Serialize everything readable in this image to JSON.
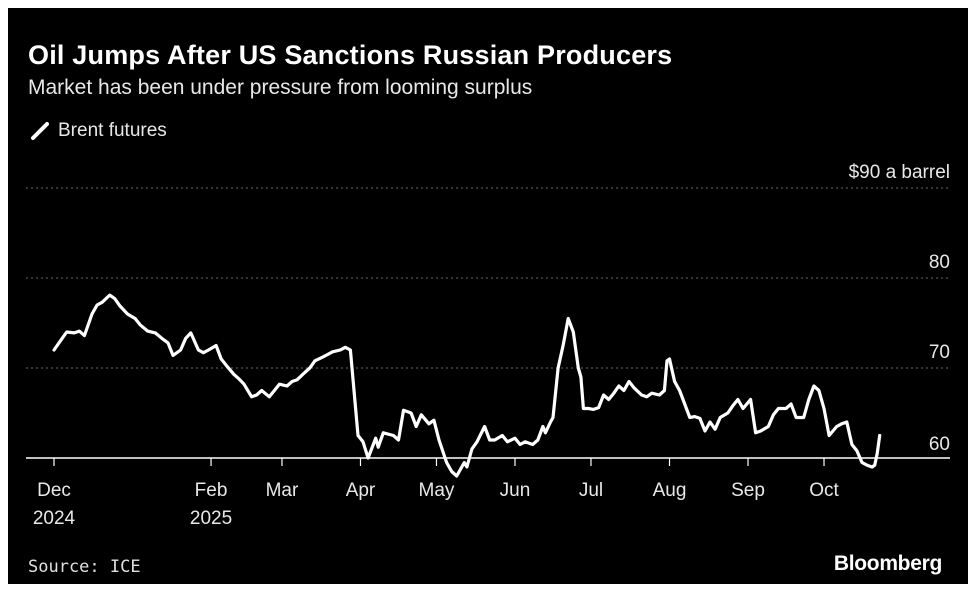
{
  "chart_data": {
    "type": "line",
    "title": "Oil Jumps After US Sanctions Russian Producers",
    "subtitle": "Market has been under pressure from looming surplus",
    "series": [
      {
        "name": "Brent futures",
        "color": "#ffffff",
        "points": [
          [
            "2024-12-01",
            72.0
          ],
          [
            "2024-12-04",
            73.2
          ],
          [
            "2024-12-06",
            74.0
          ],
          [
            "2024-12-09",
            73.9
          ],
          [
            "2024-12-11",
            74.1
          ],
          [
            "2024-12-13",
            73.6
          ],
          [
            "2024-12-16",
            76.0
          ],
          [
            "2024-12-18",
            77.0
          ],
          [
            "2024-12-20",
            77.3
          ],
          [
            "2024-12-23",
            78.1
          ],
          [
            "2024-12-25",
            77.7
          ],
          [
            "2024-12-27",
            76.9
          ],
          [
            "2024-12-30",
            76.0
          ],
          [
            "2025-01-02",
            75.5
          ],
          [
            "2025-01-04",
            74.8
          ],
          [
            "2025-01-07",
            74.1
          ],
          [
            "2025-01-10",
            73.9
          ],
          [
            "2025-01-13",
            73.2
          ],
          [
            "2025-01-15",
            72.8
          ],
          [
            "2025-01-17",
            71.4
          ],
          [
            "2025-01-20",
            72.0
          ],
          [
            "2025-01-22",
            73.3
          ],
          [
            "2025-01-24",
            73.9
          ],
          [
            "2025-01-27",
            72.0
          ],
          [
            "2025-01-29",
            71.7
          ],
          [
            "2025-01-31",
            72.0
          ],
          [
            "2025-02-03",
            72.5
          ],
          [
            "2025-02-05",
            71.0
          ],
          [
            "2025-02-07",
            70.3
          ],
          [
            "2025-02-10",
            69.3
          ],
          [
            "2025-02-12",
            68.8
          ],
          [
            "2025-02-14",
            68.2
          ],
          [
            "2025-02-17",
            66.8
          ],
          [
            "2025-02-19",
            67.0
          ],
          [
            "2025-02-21",
            67.5
          ],
          [
            "2025-02-24",
            66.8
          ],
          [
            "2025-02-26",
            67.5
          ],
          [
            "2025-02-28",
            68.2
          ],
          [
            "2025-03-03",
            68.0
          ],
          [
            "2025-03-05",
            68.5
          ],
          [
            "2025-03-07",
            68.7
          ],
          [
            "2025-03-10",
            69.5
          ],
          [
            "2025-03-12",
            70.0
          ],
          [
            "2025-03-14",
            70.8
          ],
          [
            "2025-03-17",
            71.2
          ],
          [
            "2025-03-19",
            71.5
          ],
          [
            "2025-03-21",
            71.8
          ],
          [
            "2025-03-24",
            72.0
          ],
          [
            "2025-03-26",
            72.3
          ],
          [
            "2025-03-28",
            72.0
          ],
          [
            "2025-03-31",
            62.5
          ],
          [
            "2025-04-02",
            61.8
          ],
          [
            "2025-04-04",
            60.0
          ],
          [
            "2025-04-07",
            62.2
          ],
          [
            "2025-04-08",
            61.2
          ],
          [
            "2025-04-10",
            62.8
          ],
          [
            "2025-04-14",
            62.5
          ],
          [
            "2025-04-16",
            62.0
          ],
          [
            "2025-04-18",
            65.3
          ],
          [
            "2025-04-21",
            65.0
          ],
          [
            "2025-04-23",
            63.5
          ],
          [
            "2025-04-25",
            64.8
          ],
          [
            "2025-04-28",
            63.8
          ],
          [
            "2025-04-30",
            64.2
          ],
          [
            "2025-05-02",
            62.0
          ],
          [
            "2025-05-05",
            59.5
          ],
          [
            "2025-05-07",
            58.5
          ],
          [
            "2025-05-09",
            58.0
          ],
          [
            "2025-05-12",
            59.5
          ],
          [
            "2025-05-13",
            59.0
          ],
          [
            "2025-05-15",
            61.0
          ],
          [
            "2025-05-17",
            61.8
          ],
          [
            "2025-05-20",
            63.5
          ],
          [
            "2025-05-22",
            62.0
          ],
          [
            "2025-05-24",
            62.0
          ],
          [
            "2025-05-27",
            62.5
          ],
          [
            "2025-05-29",
            61.8
          ],
          [
            "2025-06-01",
            62.2
          ],
          [
            "2025-06-03",
            61.5
          ],
          [
            "2025-06-05",
            61.8
          ],
          [
            "2025-06-08",
            61.5
          ],
          [
            "2025-06-10",
            62.0
          ],
          [
            "2025-06-12",
            63.5
          ],
          [
            "2025-06-13",
            62.8
          ],
          [
            "2025-06-15",
            64.0
          ],
          [
            "2025-06-16",
            64.5
          ],
          [
            "2025-06-18",
            70.0
          ],
          [
            "2025-06-20",
            72.5
          ],
          [
            "2025-06-22",
            75.5
          ],
          [
            "2025-06-24",
            74.0
          ],
          [
            "2025-06-26",
            70.0
          ],
          [
            "2025-06-27",
            69.0
          ],
          [
            "2025-06-28",
            65.5
          ],
          [
            "2025-06-30",
            65.5
          ],
          [
            "2025-07-02",
            65.4
          ],
          [
            "2025-07-04",
            65.6
          ],
          [
            "2025-07-06",
            67.0
          ],
          [
            "2025-07-08",
            66.5
          ],
          [
            "2025-07-10",
            67.2
          ],
          [
            "2025-07-12",
            68.0
          ],
          [
            "2025-07-14",
            67.5
          ],
          [
            "2025-07-16",
            68.5
          ],
          [
            "2025-07-18",
            67.8
          ],
          [
            "2025-07-21",
            67.0
          ],
          [
            "2025-07-23",
            66.8
          ],
          [
            "2025-07-25",
            67.2
          ],
          [
            "2025-07-28",
            67.0
          ],
          [
            "2025-07-30",
            67.5
          ],
          [
            "2025-07-31",
            70.8
          ],
          [
            "2025-08-01",
            71.0
          ],
          [
            "2025-08-03",
            68.5
          ],
          [
            "2025-08-05",
            67.5
          ],
          [
            "2025-08-07",
            66.0
          ],
          [
            "2025-08-09",
            64.5
          ],
          [
            "2025-08-11",
            64.6
          ],
          [
            "2025-08-13",
            64.4
          ],
          [
            "2025-08-15",
            63.0
          ],
          [
            "2025-08-17",
            64.0
          ],
          [
            "2025-08-19",
            63.2
          ],
          [
            "2025-08-21",
            64.5
          ],
          [
            "2025-08-24",
            65.0
          ],
          [
            "2025-08-26",
            65.8
          ],
          [
            "2025-08-28",
            66.5
          ],
          [
            "2025-08-30",
            65.5
          ],
          [
            "2025-09-02",
            66.5
          ],
          [
            "2025-09-04",
            62.8
          ],
          [
            "2025-09-06",
            63.0
          ],
          [
            "2025-09-09",
            63.5
          ],
          [
            "2025-09-11",
            64.8
          ],
          [
            "2025-09-13",
            65.5
          ],
          [
            "2025-09-16",
            65.5
          ],
          [
            "2025-09-18",
            66.0
          ],
          [
            "2025-09-20",
            64.5
          ],
          [
            "2025-09-23",
            64.5
          ],
          [
            "2025-09-25",
            66.5
          ],
          [
            "2025-09-27",
            68.0
          ],
          [
            "2025-09-29",
            67.5
          ],
          [
            "2025-10-01",
            65.5
          ],
          [
            "2025-10-03",
            62.5
          ],
          [
            "2025-10-06",
            63.5
          ],
          [
            "2025-10-08",
            63.8
          ],
          [
            "2025-10-10",
            64.0
          ],
          [
            "2025-10-12",
            61.5
          ],
          [
            "2025-10-14",
            60.8
          ],
          [
            "2025-10-16",
            59.5
          ],
          [
            "2025-10-18",
            59.2
          ],
          [
            "2025-10-20",
            59.0
          ],
          [
            "2025-10-21",
            59.2
          ],
          [
            "2025-10-22",
            60.5
          ],
          [
            "2025-10-23",
            62.5
          ]
        ]
      }
    ],
    "y_axis": {
      "min": 60,
      "max": 90,
      "ticks": [
        {
          "value": 90,
          "label": "$90 a barrel"
        },
        {
          "value": 80,
          "label": "80"
        },
        {
          "value": 70,
          "label": "70"
        },
        {
          "value": 60,
          "label": "60"
        }
      ],
      "grid": "dotted"
    },
    "x_axis": {
      "min": "2024-12-01",
      "max": "2025-10-31",
      "ticks": [
        {
          "date": "2024-12-01",
          "label": "Dec",
          "sublabel": "2024"
        },
        {
          "date": "2025-02-01",
          "label": "Feb",
          "sublabel": "2025"
        },
        {
          "date": "2025-03-01",
          "label": "Mar"
        },
        {
          "date": "2025-04-01",
          "label": "Apr"
        },
        {
          "date": "2025-05-01",
          "label": "May"
        },
        {
          "date": "2025-06-01",
          "label": "Jun"
        },
        {
          "date": "2025-07-01",
          "label": "Jul"
        },
        {
          "date": "2025-08-01",
          "label": "Aug"
        },
        {
          "date": "2025-09-01",
          "label": "Sep"
        },
        {
          "date": "2025-10-01",
          "label": "Oct"
        }
      ]
    },
    "legend": {
      "label": "Brent futures",
      "placement": "top-left"
    },
    "source": "Source: ICE",
    "brand": "Bloomberg",
    "background": "#000000",
    "text_color": "#ffffff"
  }
}
